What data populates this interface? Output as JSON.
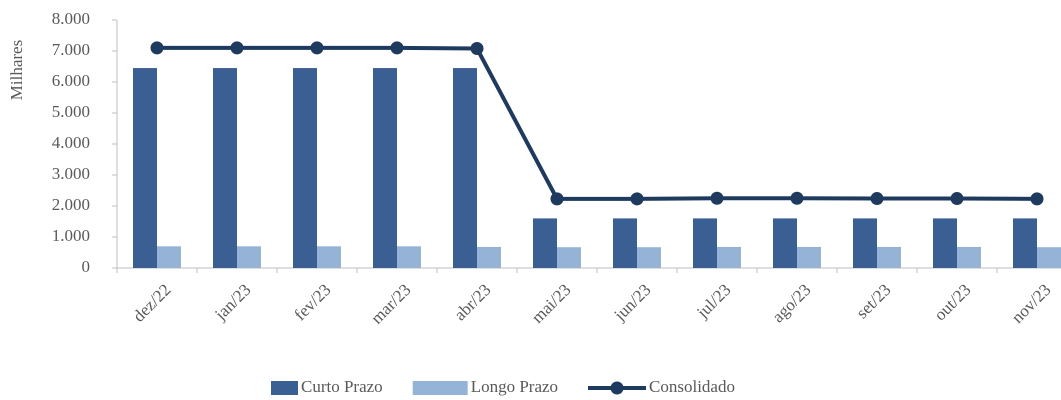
{
  "chart_data": {
    "type": "bar",
    "y_label": "Milhares",
    "categories": [
      "dez/22",
      "jan/23",
      "fev/23",
      "mar/23",
      "abr/23",
      "mai/23",
      "jun/23",
      "jul/23",
      "ago/23",
      "set/23",
      "out/23",
      "nov/23"
    ],
    "series": [
      {
        "name": "Curto Prazo",
        "color": "#3a5f93",
        "type": "bar",
        "values": [
          6450,
          6450,
          6450,
          6450,
          6450,
          1600,
          1600,
          1600,
          1600,
          1600,
          1600,
          1600
        ]
      },
      {
        "name": "Longo Prazo",
        "color": "#95b3d7",
        "type": "bar",
        "values": [
          700,
          700,
          700,
          700,
          680,
          670,
          670,
          680,
          680,
          680,
          680,
          670
        ]
      },
      {
        "name": "Consolidado",
        "color": "#1f3a5f",
        "type": "line",
        "values": [
          7100,
          7100,
          7100,
          7100,
          7080,
          2230,
          2230,
          2250,
          2250,
          2240,
          2240,
          2230
        ]
      }
    ],
    "ylim": [
      0,
      8000
    ],
    "yticks": [
      0,
      {
        "value": 1000,
        "label": "1.000"
      },
      {
        "value": 2000,
        "label": "2.000"
      },
      {
        "value": 3000,
        "label": "3.000"
      },
      {
        "value": 4000,
        "label": "4.000"
      },
      {
        "value": 5000,
        "label": "5.000"
      },
      {
        "value": 6000,
        "label": "6.000"
      },
      {
        "value": 7000,
        "label": "7.000"
      },
      {
        "value": 8000,
        "label": "8.000"
      }
    ],
    "legend": "bottom"
  }
}
